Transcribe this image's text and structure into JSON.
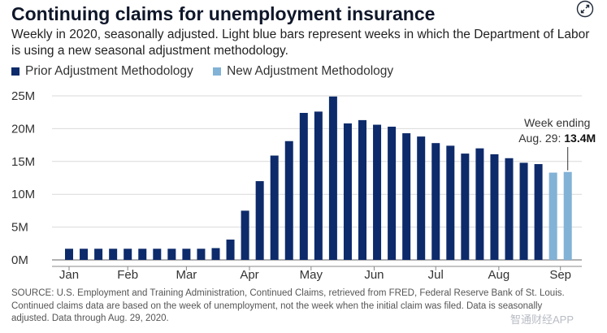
{
  "title": "Continuing claims for unemployment insurance",
  "subtitle": "Weekly in 2020, seasonally adjusted. Light blue bars represent weeks in which the Department of Labor is using a new seasonal adjustment methodology.",
  "legend": {
    "prior": "Prior Adjustment Methodology",
    "new": "New Adjustment Methodology"
  },
  "colors": {
    "prior": "#0d2b6b",
    "new": "#82b2d6"
  },
  "annotation": {
    "line1": "Week ending",
    "line2_prefix": "Aug. 29: ",
    "line2_value": "13.4M"
  },
  "source": "SOURCE: U.S. Employment and Training Administration, Continued Claims, retrieved from FRED, Federal Reserve Bank of St. Louis. Continued claims data are based on the week of unemployment, not the week when the initial claim was filed. Data is seasonally adjusted. Data through Aug. 29, 2020.",
  "watermark": "智通财经APP",
  "chart_data": {
    "type": "bar",
    "unit": "millions",
    "ylim": [
      0,
      25
    ],
    "yticks": [
      0,
      5,
      10,
      15,
      20,
      25
    ],
    "ytick_labels": [
      "0M",
      "5M",
      "10M",
      "15M",
      "20M",
      "25M"
    ],
    "months": [
      {
        "label": "Jan",
        "week": 0.5
      },
      {
        "label": "Feb",
        "week": 4.5
      },
      {
        "label": "Mar",
        "week": 8.5
      },
      {
        "label": "Apr",
        "week": 12.8
      },
      {
        "label": "May",
        "week": 17.0
      },
      {
        "label": "Jun",
        "week": 21.3
      },
      {
        "label": "Jul",
        "week": 25.5
      },
      {
        "label": "Aug",
        "week": 29.8
      },
      {
        "label": "Sep",
        "week": 34.0
      }
    ],
    "series": [
      {
        "name": "Prior Adjustment Methodology",
        "values": [
          1.7,
          1.7,
          1.7,
          1.7,
          1.7,
          1.7,
          1.7,
          1.7,
          1.7,
          1.7,
          1.8,
          3.1,
          7.5,
          12.0,
          15.9,
          18.1,
          22.4,
          22.6,
          24.9,
          20.8,
          21.3,
          20.6,
          20.3,
          19.3,
          18.8,
          17.8,
          17.4,
          16.2,
          17.0,
          16.1,
          15.5,
          14.8,
          14.6
        ]
      },
      {
        "name": "New Adjustment Methodology",
        "values": [
          13.3,
          13.4
        ]
      }
    ]
  }
}
